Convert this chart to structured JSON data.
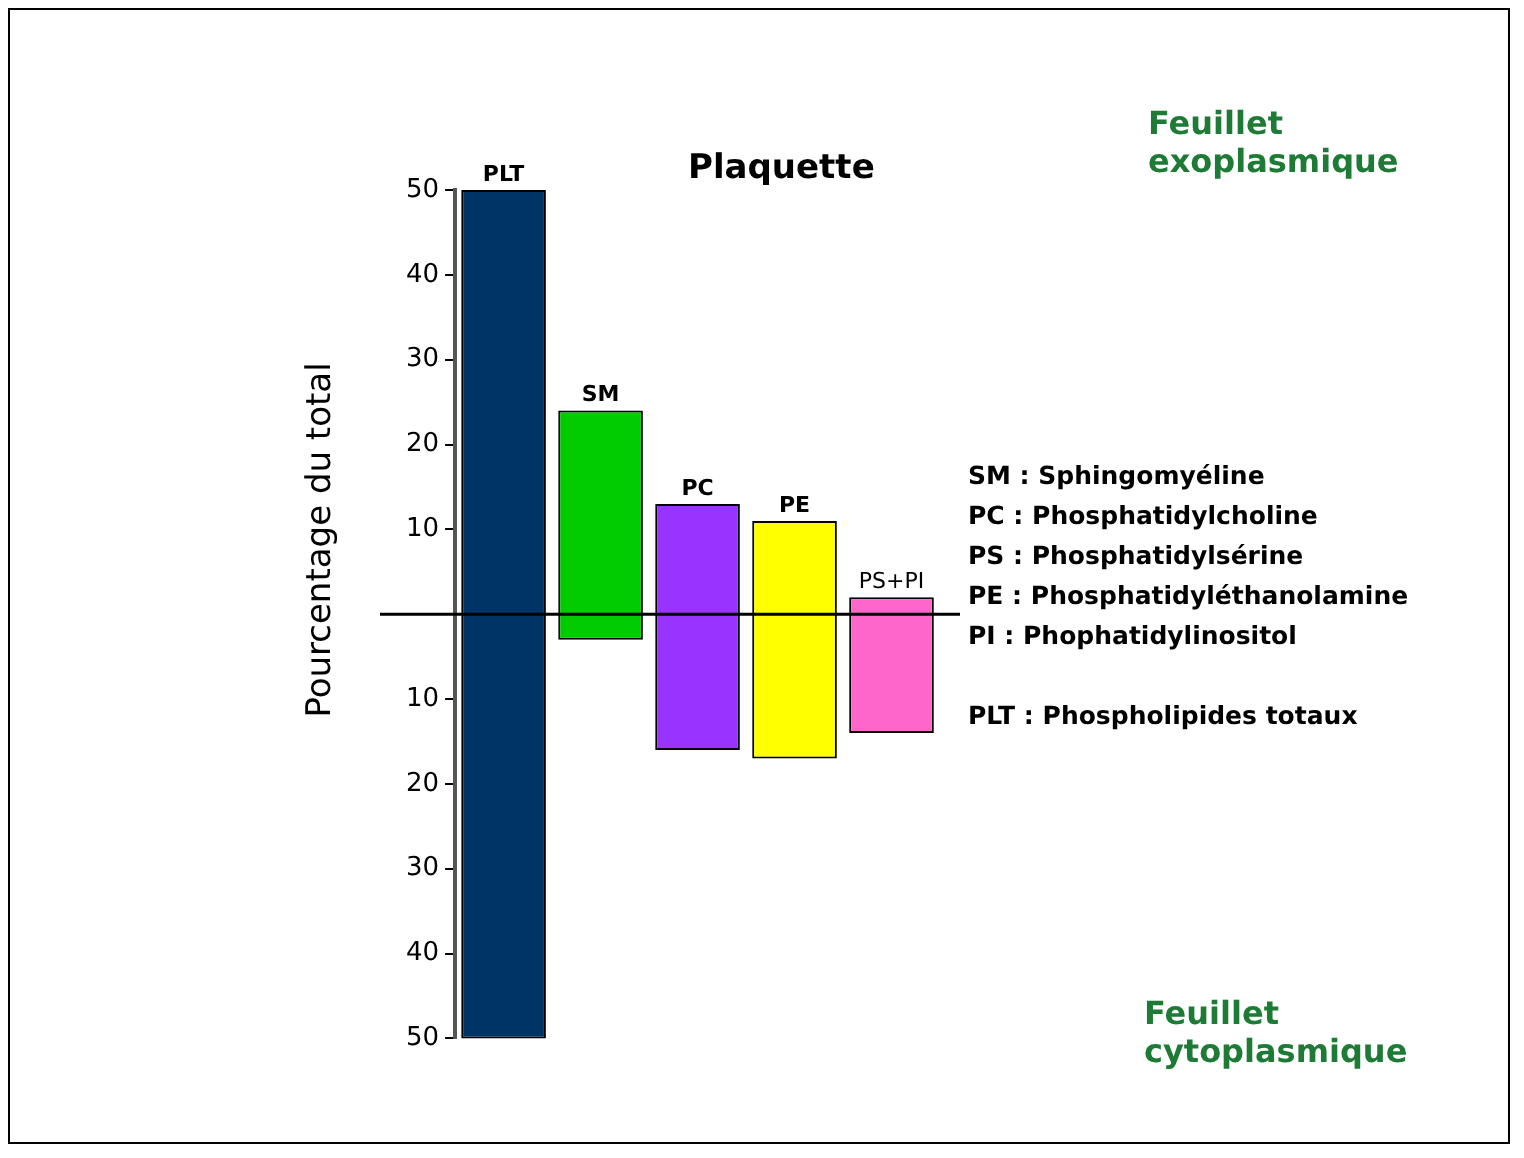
{
  "chart_data": {
    "type": "bar",
    "title": "Plaquette",
    "ylabel": "Pourcentage du total",
    "categories": [
      "PLT",
      "SM",
      "PC",
      "PE",
      "PS+PI"
    ],
    "values": [
      100,
      27,
      29,
      28,
      16
    ],
    "base": [
      -50,
      -3,
      -16,
      -17,
      -14
    ],
    "colors": [
      "#003366",
      "#00cc00",
      "#9933ff",
      "#ffff00",
      "#ff66cc"
    ],
    "ylim": [
      -50,
      50
    ],
    "yticks": [
      {
        "value": -50,
        "label": "50"
      },
      {
        "value": -40,
        "label": "40"
      },
      {
        "value": -30,
        "label": "30"
      },
      {
        "value": -20,
        "label": "20"
      },
      {
        "value": -10,
        "label": "10"
      },
      {
        "value": 0,
        "label": null
      },
      10,
      20,
      30,
      40,
      50
    ],
    "ref_lines": [
      {
        "axis": "y",
        "value": 0,
        "label": null
      }
    ],
    "grid": false,
    "legend": false,
    "annotations": [
      "Feuillet exoplasmique",
      "Feuillet cytoplasmique",
      "SM : Sphingomyéline",
      "PC : Phosphatidylcholine",
      "PS : Phosphatidylsérine",
      "PE : Phosphatidyléthanolamine",
      "PI : Phophatidylinositol",
      "PLT : Phospholipides totaux"
    ]
  }
}
